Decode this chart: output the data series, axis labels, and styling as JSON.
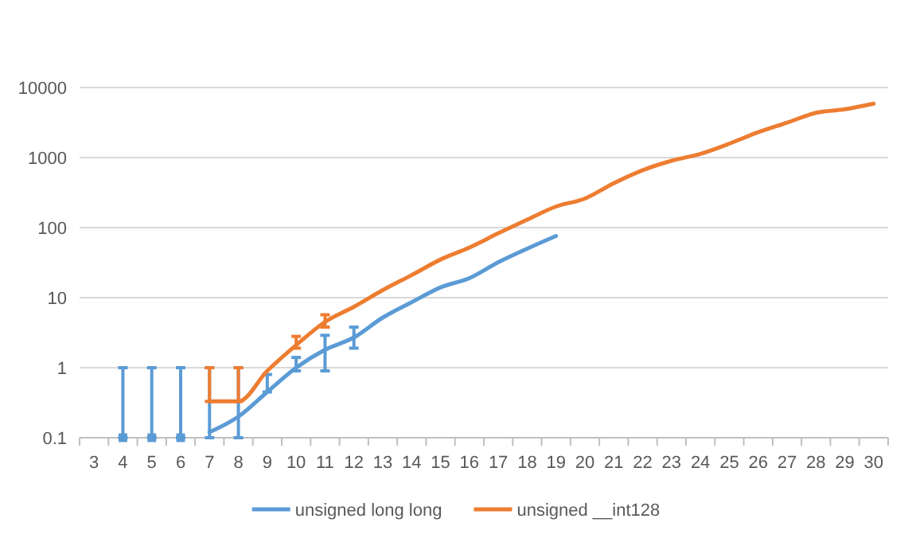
{
  "chart_data": {
    "type": "line",
    "categories": [
      "3",
      "4",
      "5",
      "6",
      "7",
      "8",
      "9",
      "10",
      "11",
      "12",
      "13",
      "14",
      "15",
      "16",
      "17",
      "18",
      "19",
      "20",
      "21",
      "22",
      "23",
      "24",
      "25",
      "26",
      "27",
      "28",
      "29",
      "30"
    ],
    "log": true,
    "ylim": [
      0.1,
      10000
    ],
    "yticks": [
      0.1,
      1,
      10,
      100,
      1000,
      10000
    ],
    "grid": "y",
    "legend": "bottom",
    "marker": "none",
    "line_style": "solid",
    "series": [
      {
        "name": "unsigned long long",
        "color": "#5b9bd5",
        "values": [
          null,
          null,
          null,
          null,
          0.12,
          0.2,
          0.45,
          1.0,
          1.8,
          2.7,
          5.2,
          8.6,
          14,
          19,
          32,
          50,
          76,
          null,
          null,
          null,
          null,
          null,
          null,
          null,
          null,
          null,
          null,
          null
        ],
        "errors": [
          null,
          null,
          null,
          null,
          [
            0.1,
            1
          ],
          [
            0.1,
            1
          ],
          [
            0.45,
            0.8
          ],
          [
            0.9,
            1.4
          ],
          [
            0.9,
            2.9
          ],
          [
            1.9,
            3.8
          ],
          null,
          null,
          null,
          null,
          null,
          null,
          null,
          null,
          null,
          null,
          null,
          null,
          null,
          null,
          null,
          null,
          null,
          null
        ]
      },
      {
        "type": "scatter",
        "marker": "square",
        "color": "#5b9bd5",
        "values": [
          null,
          0.1,
          0.1,
          0.1,
          null,
          null,
          null,
          null,
          null,
          null,
          null,
          null,
          null,
          null,
          null,
          null,
          null,
          null,
          null,
          null,
          null,
          null,
          null,
          null,
          null,
          null,
          null,
          null
        ],
        "errors": [
          null,
          [
            0.1,
            1
          ],
          [
            0.1,
            1
          ],
          [
            0.1,
            1
          ],
          null,
          null,
          null,
          null,
          null,
          null,
          null,
          null,
          null,
          null,
          null,
          null,
          null,
          null,
          null,
          null,
          null,
          null,
          null,
          null,
          null,
          null,
          null,
          null
        ]
      },
      {
        "name": "unsigned __int128",
        "color": "#ed7d31",
        "values": [
          null,
          null,
          null,
          null,
          0.33,
          0.33,
          0.9,
          2.1,
          4.5,
          7.4,
          12.8,
          21,
          35,
          52,
          83,
          130,
          200,
          260,
          430,
          660,
          900,
          1130,
          1580,
          2300,
          3150,
          4360,
          4900,
          5900
        ],
        "errors": [
          null,
          null,
          null,
          null,
          [
            0.33,
            1
          ],
          [
            0.33,
            1
          ],
          null,
          [
            1.9,
            2.8
          ],
          [
            3.8,
            5.7
          ],
          null,
          null,
          null,
          null,
          null,
          null,
          null,
          null,
          null,
          null,
          null,
          null,
          null,
          null,
          null,
          null,
          null,
          null,
          null
        ]
      }
    ]
  }
}
